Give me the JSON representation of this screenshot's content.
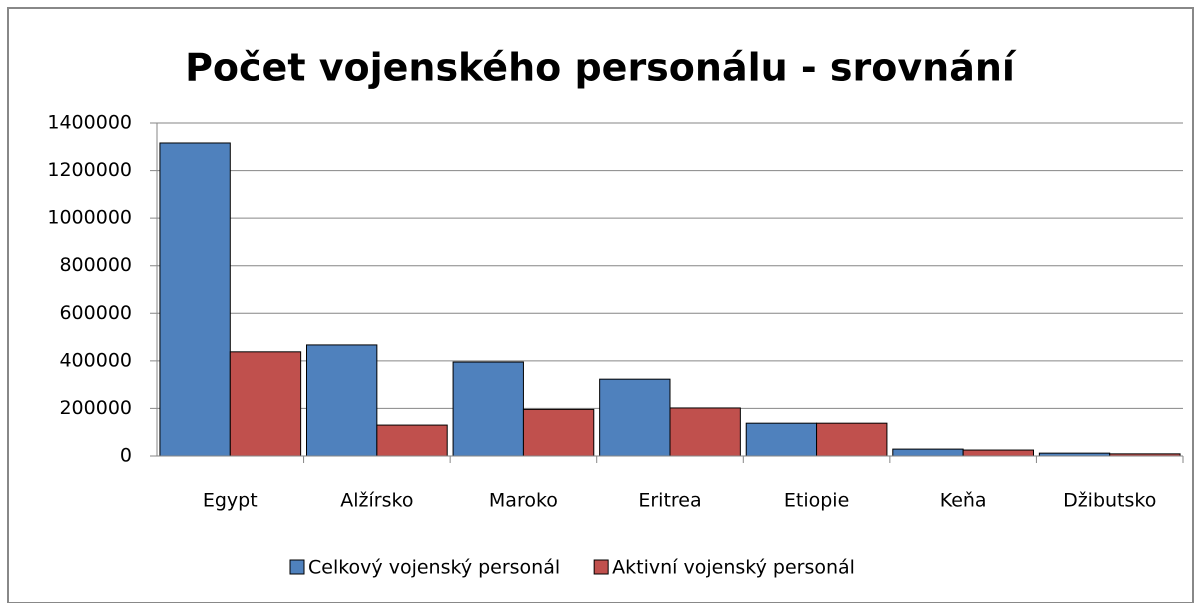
{
  "chart_data": {
    "type": "bar",
    "title": "Počet vojenského personálu - srovnání",
    "categories": [
      "Egypt",
      "Alžírsko",
      "Maroko",
      "Eritrea",
      "Etiopie",
      "Keňa",
      "Džibutsko"
    ],
    "series": [
      {
        "name": "Celkový vojenský personál",
        "color": "#4f81bd",
        "values": [
          1316000,
          467000,
          395000,
          323000,
          138000,
          29000,
          12000
        ]
      },
      {
        "name": "Aktivní vojenský personál",
        "color": "#c0504d",
        "values": [
          438000,
          130000,
          196000,
          202000,
          138000,
          25000,
          9000
        ]
      }
    ],
    "ylim": [
      0,
      1400000
    ],
    "yticks": [
      0,
      200000,
      400000,
      600000,
      800000,
      1000000,
      1200000,
      1400000
    ],
    "grid": true,
    "legend": "bottom"
  }
}
